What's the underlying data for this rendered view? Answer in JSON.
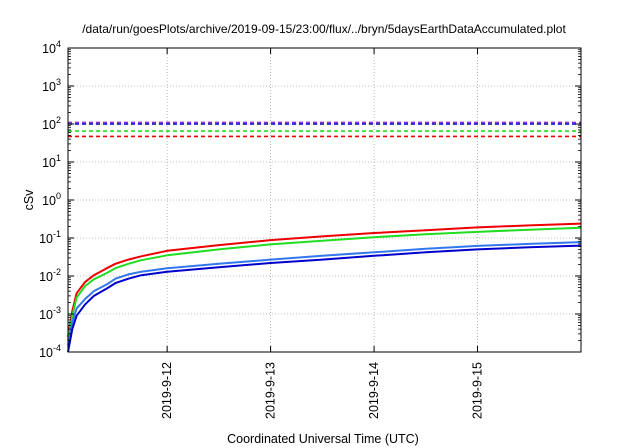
{
  "chart_data": {
    "type": "line",
    "title": "/data/run/goesPlots/archive/2019-09-15/23:00/flux/../bryn/5daysEarthDataAccumulated.plot",
    "xlabel": "Coordinated Universal Time (UTC)",
    "ylabel": "cSv",
    "x_axis": {
      "type": "time",
      "range": [
        "2019-09-11T01:00",
        "2019-09-16T00:00"
      ],
      "tick_labels": [
        "2019-9-12",
        "2019-9-13",
        "2019-9-14",
        "2019-9-15"
      ],
      "tick_values": [
        "2019-09-12T00:00",
        "2019-09-13T00:00",
        "2019-09-14T00:00",
        "2019-09-15T00:00"
      ]
    },
    "y_axis": {
      "scale": "log",
      "range": [
        0.0001,
        10000
      ],
      "tick_labels": [
        {
          "base": "10",
          "exp": "-4"
        },
        {
          "base": "10",
          "exp": "-3"
        },
        {
          "base": "10",
          "exp": "-2"
        },
        {
          "base": "10",
          "exp": "-1"
        },
        {
          "base": "10",
          "exp": "0"
        },
        {
          "base": "10",
          "exp": "1"
        },
        {
          "base": "10",
          "exp": "2"
        },
        {
          "base": "10",
          "exp": "3"
        },
        {
          "base": "10",
          "exp": "4"
        }
      ],
      "tick_values": [
        0.0001,
        0.001,
        0.01,
        0.1,
        1,
        10,
        100,
        1000,
        10000
      ]
    },
    "grid": true,
    "legend": "none",
    "series": [
      {
        "color": "#ee0000",
        "style": "solid",
        "points": [
          [
            "2019-09-11T01:00",
            0.00025
          ],
          [
            "2019-09-11T02:00",
            0.0012
          ],
          [
            "2019-09-11T03:00",
            0.0035
          ],
          [
            "2019-09-11T05:00",
            0.007
          ],
          [
            "2019-09-11T07:00",
            0.0105
          ],
          [
            "2019-09-11T10:00",
            0.016
          ],
          [
            "2019-09-11T12:00",
            0.021
          ],
          [
            "2019-09-11T15:00",
            0.027
          ],
          [
            "2019-09-11T18:00",
            0.033
          ],
          [
            "2019-09-12T00:00",
            0.046
          ],
          [
            "2019-09-12T12:00",
            0.065
          ],
          [
            "2019-09-13T00:00",
            0.088
          ],
          [
            "2019-09-13T12:00",
            0.11
          ],
          [
            "2019-09-14T00:00",
            0.135
          ],
          [
            "2019-09-14T12:00",
            0.16
          ],
          [
            "2019-09-15T00:00",
            0.19
          ],
          [
            "2019-09-15T12:00",
            0.215
          ],
          [
            "2019-09-16T00:00",
            0.24
          ]
        ]
      },
      {
        "color": "#22dd22",
        "style": "solid",
        "points": [
          [
            "2019-09-11T01:00",
            0.0002
          ],
          [
            "2019-09-11T02:00",
            0.0009
          ],
          [
            "2019-09-11T03:00",
            0.0027
          ],
          [
            "2019-09-11T05:00",
            0.0055
          ],
          [
            "2019-09-11T07:00",
            0.0082
          ],
          [
            "2019-09-11T10:00",
            0.012
          ],
          [
            "2019-09-11T12:00",
            0.016
          ],
          [
            "2019-09-11T15:00",
            0.021
          ],
          [
            "2019-09-11T18:00",
            0.026
          ],
          [
            "2019-09-12T00:00",
            0.035
          ],
          [
            "2019-09-12T12:00",
            0.05
          ],
          [
            "2019-09-13T00:00",
            0.068
          ],
          [
            "2019-09-13T12:00",
            0.085
          ],
          [
            "2019-09-14T00:00",
            0.105
          ],
          [
            "2019-09-14T12:00",
            0.125
          ],
          [
            "2019-09-15T00:00",
            0.145
          ],
          [
            "2019-09-15T12:00",
            0.165
          ],
          [
            "2019-09-16T00:00",
            0.185
          ]
        ]
      },
      {
        "color": "#3377ee",
        "style": "solid",
        "points": [
          [
            "2019-09-11T01:00",
            0.00015
          ],
          [
            "2019-09-11T02:00",
            0.0006
          ],
          [
            "2019-09-11T03:00",
            0.0014
          ],
          [
            "2019-09-11T05:00",
            0.0025
          ],
          [
            "2019-09-11T07:00",
            0.004
          ],
          [
            "2019-09-11T10:00",
            0.006
          ],
          [
            "2019-09-11T12:00",
            0.0085
          ],
          [
            "2019-09-11T15:00",
            0.011
          ],
          [
            "2019-09-11T18:00",
            0.013
          ],
          [
            "2019-09-12T00:00",
            0.016
          ],
          [
            "2019-09-12T12:00",
            0.021
          ],
          [
            "2019-09-13T00:00",
            0.027
          ],
          [
            "2019-09-13T12:00",
            0.034
          ],
          [
            "2019-09-14T00:00",
            0.042
          ],
          [
            "2019-09-14T12:00",
            0.052
          ],
          [
            "2019-09-15T00:00",
            0.062
          ],
          [
            "2019-09-15T12:00",
            0.07
          ],
          [
            "2019-09-16T00:00",
            0.078
          ]
        ]
      },
      {
        "color": "#0000cc",
        "style": "solid",
        "points": [
          [
            "2019-09-11T01:00",
            0.0001
          ],
          [
            "2019-09-11T02:00",
            0.0004
          ],
          [
            "2019-09-11T03:00",
            0.0009
          ],
          [
            "2019-09-11T05:00",
            0.0018
          ],
          [
            "2019-09-11T07:00",
            0.003
          ],
          [
            "2019-09-11T10:00",
            0.0047
          ],
          [
            "2019-09-11T12:00",
            0.0065
          ],
          [
            "2019-09-11T15:00",
            0.0085
          ],
          [
            "2019-09-11T18:00",
            0.0105
          ],
          [
            "2019-09-12T00:00",
            0.013
          ],
          [
            "2019-09-12T12:00",
            0.017
          ],
          [
            "2019-09-13T00:00",
            0.022
          ],
          [
            "2019-09-13T12:00",
            0.027
          ],
          [
            "2019-09-14T00:00",
            0.034
          ],
          [
            "2019-09-14T12:00",
            0.042
          ],
          [
            "2019-09-15T00:00",
            0.05
          ],
          [
            "2019-09-15T12:00",
            0.057
          ],
          [
            "2019-09-16T00:00",
            0.063
          ]
        ]
      },
      {
        "color": "#9933cc",
        "style": "dashed",
        "value": 110
      },
      {
        "color": "#0000cc",
        "style": "dashed",
        "value": 100
      },
      {
        "color": "#22dd22",
        "style": "dashed",
        "value": 65
      },
      {
        "color": "#ee0000",
        "style": "dashed",
        "value": 47
      }
    ]
  }
}
